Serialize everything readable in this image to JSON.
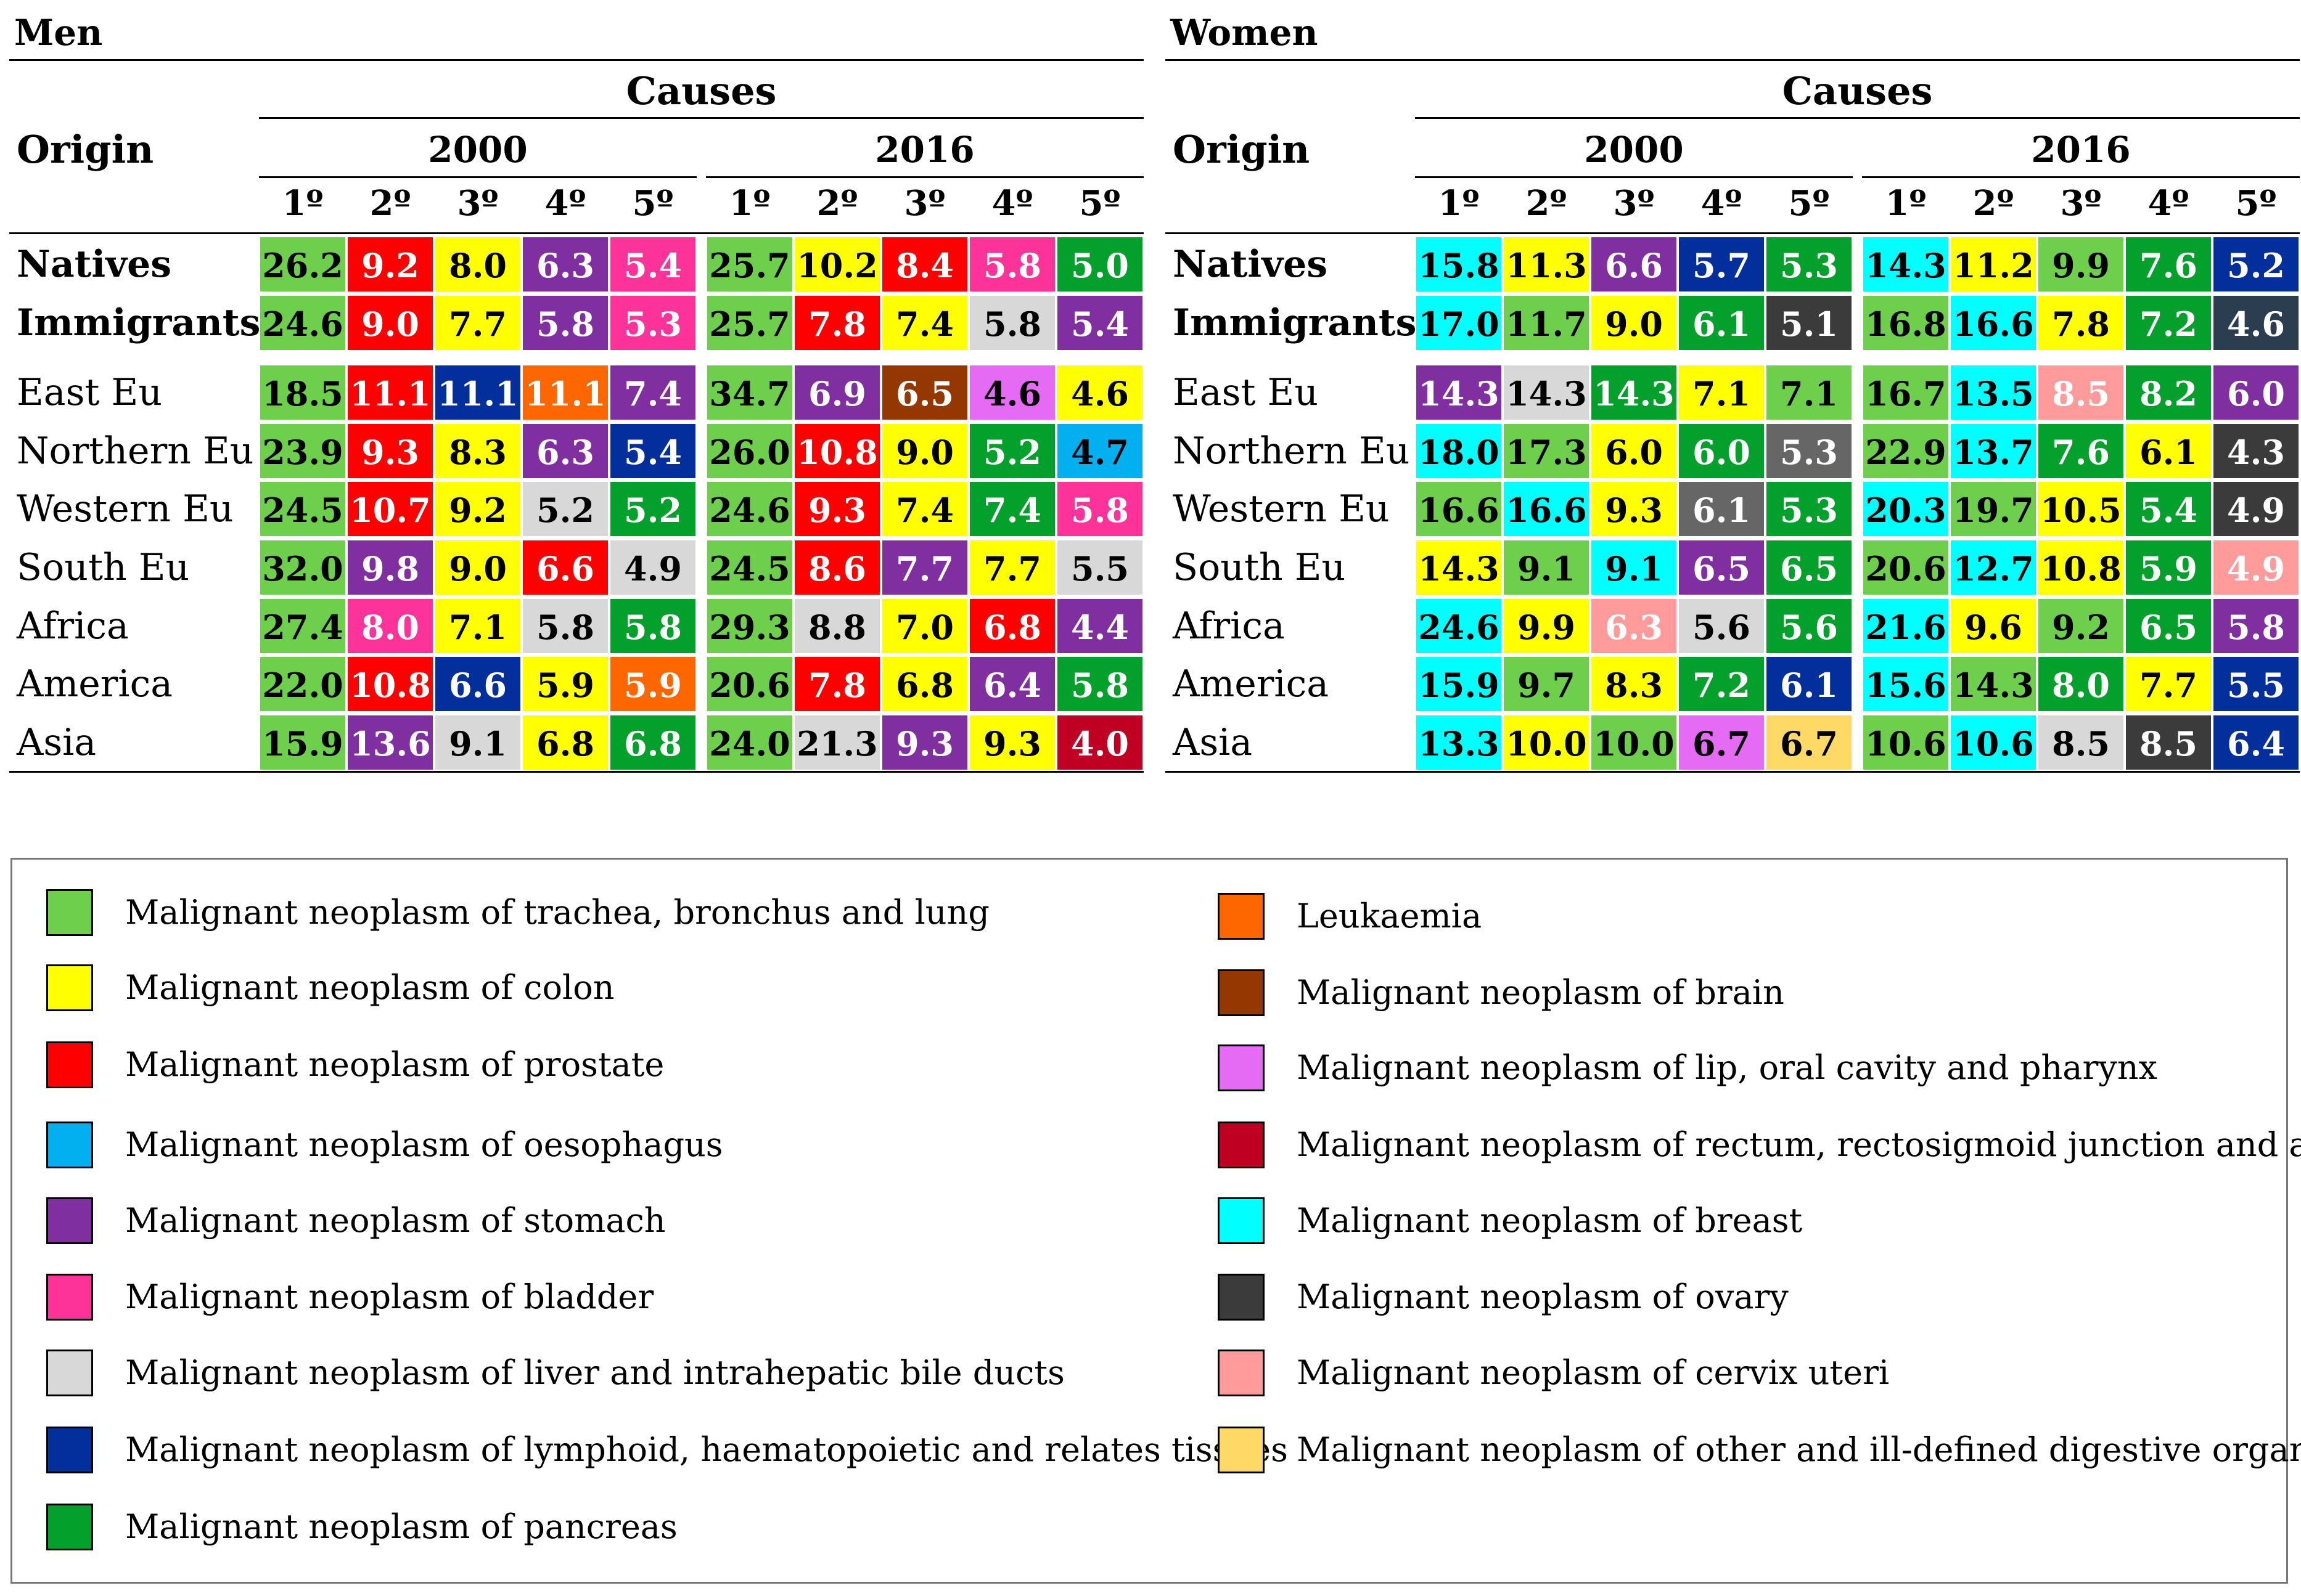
{
  "chart_data": [
    {
      "type": "table",
      "panel": "Men",
      "header_causes": "Causes",
      "header_origin": "Origin",
      "years": [
        "2000",
        "2016"
      ],
      "ranks": [
        "1º",
        "2º",
        "3º",
        "4º",
        "5º"
      ],
      "rows": [
        {
          "origin": "Natives",
          "bold": true,
          "values": [
            "26.2",
            "9.2",
            "8.0",
            "6.3",
            "5.4",
            "25.7",
            "10.2",
            "8.4",
            "5.8",
            "5.0"
          ],
          "causes": [
            "lung",
            "prostate",
            "colon",
            "stomach",
            "bladder",
            "lung",
            "colon",
            "prostate",
            "bladder",
            "pancreas"
          ]
        },
        {
          "origin": "Immigrants",
          "bold": true,
          "values": [
            "24.6",
            "9.0",
            "7.7",
            "5.8",
            "5.3",
            "25.7",
            "7.8",
            "7.4",
            "5.8",
            "5.4"
          ],
          "causes": [
            "lung",
            "prostate",
            "colon",
            "stomach",
            "bladder",
            "lung",
            "prostate",
            "colon",
            "liver",
            "stomach"
          ]
        },
        {
          "origin": "East Eu",
          "bold": false,
          "values": [
            "18.5",
            "11.1",
            "11.1",
            "11.1",
            "7.4",
            "34.7",
            "6.9",
            "6.5",
            "4.6",
            "4.6"
          ],
          "causes": [
            "lung",
            "prostate",
            "lymphoid",
            "leukaemia",
            "stomach",
            "lung",
            "stomach",
            "brain",
            "lip",
            "colon"
          ]
        },
        {
          "origin": "Northern Eu",
          "bold": false,
          "values": [
            "23.9",
            "9.3",
            "8.3",
            "6.3",
            "5.4",
            "26.0",
            "10.8",
            "9.0",
            "5.2",
            "4.7"
          ],
          "causes": [
            "lung",
            "prostate",
            "colon",
            "stomach",
            "lymphoid",
            "lung",
            "prostate",
            "colon",
            "pancreas",
            "oesophagus"
          ]
        },
        {
          "origin": "Western Eu",
          "bold": false,
          "values": [
            "24.5",
            "10.7",
            "9.2",
            "5.2",
            "5.2",
            "24.6",
            "9.3",
            "7.4",
            "7.4",
            "5.8"
          ],
          "causes": [
            "lung",
            "prostate",
            "colon",
            "liver",
            "pancreas",
            "lung",
            "prostate",
            "colon",
            "pancreas",
            "bladder"
          ]
        },
        {
          "origin": "South Eu",
          "bold": false,
          "values": [
            "32.0",
            "9.8",
            "9.0",
            "6.6",
            "4.9",
            "24.5",
            "8.6",
            "7.7",
            "7.7",
            "5.5"
          ],
          "causes": [
            "lung",
            "stomach",
            "colon",
            "prostate",
            "liver",
            "lung",
            "prostate",
            "stomach",
            "colon",
            "liver"
          ]
        },
        {
          "origin": "Africa",
          "bold": false,
          "values": [
            "27.4",
            "8.0",
            "7.1",
            "5.8",
            "5.8",
            "29.3",
            "8.8",
            "7.0",
            "6.8",
            "4.4"
          ],
          "causes": [
            "lung",
            "bladder",
            "colon",
            "liver",
            "pancreas",
            "lung",
            "liver",
            "colon",
            "prostate",
            "stomach"
          ]
        },
        {
          "origin": "America",
          "bold": false,
          "values": [
            "22.0",
            "10.8",
            "6.6",
            "5.9",
            "5.9",
            "20.6",
            "7.8",
            "6.8",
            "6.4",
            "5.8"
          ],
          "causes": [
            "lung",
            "prostate",
            "lymphoid",
            "colon",
            "leukaemia",
            "lung",
            "prostate",
            "colon",
            "stomach",
            "pancreas"
          ]
        },
        {
          "origin": "Asia",
          "bold": false,
          "values": [
            "15.9",
            "13.6",
            "9.1",
            "6.8",
            "6.8",
            "24.0",
            "21.3",
            "9.3",
            "9.3",
            "4.0"
          ],
          "causes": [
            "lung",
            "stomach",
            "liver",
            "colon",
            "pancreas",
            "lung",
            "liver",
            "stomach",
            "colon",
            "rectum"
          ]
        }
      ]
    },
    {
      "type": "table",
      "panel": "Women",
      "header_causes": "Causes",
      "header_origin": "Origin",
      "years": [
        "2000",
        "2016"
      ],
      "ranks": [
        "1º",
        "2º",
        "3º",
        "4º",
        "5º"
      ],
      "rows": [
        {
          "origin": "Natives",
          "bold": true,
          "values": [
            "15.8",
            "11.3",
            "6.6",
            "5.7",
            "5.3",
            "14.3",
            "11.2",
            "9.9",
            "7.6",
            "5.2"
          ],
          "causes": [
            "breast",
            "colon",
            "stomach",
            "lymphoid",
            "pancreas",
            "breast",
            "colon",
            "lung",
            "pancreas",
            "lymphoid"
          ]
        },
        {
          "origin": "Immigrants",
          "bold": true,
          "values": [
            "17.0",
            "11.7",
            "9.0",
            "6.1",
            "5.1",
            "16.8",
            "16.6",
            "7.8",
            "7.2",
            "4.6"
          ],
          "causes": [
            "breast",
            "lung",
            "colon",
            "pancreas",
            "ovary",
            "lung",
            "breast",
            "colon",
            "pancreas",
            "slate"
          ]
        },
        {
          "origin": "East Eu",
          "bold": false,
          "values": [
            "14.3",
            "14.3",
            "14.3",
            "7.1",
            "7.1",
            "16.7",
            "13.5",
            "8.5",
            "8.2",
            "6.0"
          ],
          "causes": [
            "stomach",
            "liver",
            "pancreas",
            "colon",
            "lung",
            "lung",
            "breast",
            "cervix",
            "pancreas",
            "stomach"
          ]
        },
        {
          "origin": "Northern Eu",
          "bold": false,
          "values": [
            "18.0",
            "17.3",
            "6.0",
            "6.0",
            "5.3",
            "22.9",
            "13.7",
            "7.6",
            "6.1",
            "4.3"
          ],
          "causes": [
            "breast",
            "lung",
            "colon",
            "pancreas",
            "grey",
            "lung",
            "breast",
            "pancreas",
            "colon",
            "ovary"
          ]
        },
        {
          "origin": "Western Eu",
          "bold": false,
          "values": [
            "16.6",
            "16.6",
            "9.3",
            "6.1",
            "5.3",
            "20.3",
            "19.7",
            "10.5",
            "5.4",
            "4.9"
          ],
          "causes": [
            "lung",
            "breast",
            "colon",
            "grey",
            "pancreas",
            "breast",
            "lung",
            "colon",
            "pancreas",
            "ovary"
          ]
        },
        {
          "origin": "South Eu",
          "bold": false,
          "values": [
            "14.3",
            "9.1",
            "9.1",
            "6.5",
            "6.5",
            "20.6",
            "12.7",
            "10.8",
            "5.9",
            "4.9"
          ],
          "causes": [
            "colon",
            "lung",
            "breast",
            "stomach",
            "pancreas",
            "lung",
            "breast",
            "colon",
            "pancreas",
            "cervix"
          ]
        },
        {
          "origin": "Africa",
          "bold": false,
          "values": [
            "24.6",
            "9.9",
            "6.3",
            "5.6",
            "5.6",
            "21.6",
            "9.6",
            "9.2",
            "6.5",
            "5.8"
          ],
          "causes": [
            "breast",
            "colon",
            "cervix",
            "liver",
            "pancreas",
            "breast",
            "colon",
            "lung",
            "pancreas",
            "stomach"
          ]
        },
        {
          "origin": "America",
          "bold": false,
          "values": [
            "15.9",
            "9.7",
            "8.3",
            "7.2",
            "6.1",
            "15.6",
            "14.3",
            "8.0",
            "7.7",
            "5.5"
          ],
          "causes": [
            "breast",
            "lung",
            "colon",
            "pancreas",
            "lymphoid",
            "breast",
            "lung",
            "pancreas",
            "colon",
            "lymphoid"
          ]
        },
        {
          "origin": "Asia",
          "bold": false,
          "values": [
            "13.3",
            "10.0",
            "10.0",
            "6.7",
            "6.7",
            "10.6",
            "10.6",
            "8.5",
            "8.5",
            "6.4"
          ],
          "causes": [
            "breast",
            "colon",
            "lung",
            "lip",
            "other_digestive",
            "lung",
            "breast",
            "liver",
            "ovary",
            "lymphoid"
          ]
        }
      ]
    }
  ],
  "colors": {
    "lung": "#6dcf4c",
    "colon": "#ffff00",
    "prostate": "#fe0000",
    "oesophagus": "#02b0f0",
    "stomach": "#7f2fa0",
    "bladder": "#fe3399",
    "liver": "#d8d8d8",
    "lymphoid": "#032f9c",
    "pancreas": "#03a02b",
    "leukaemia": "#fe6600",
    "brain": "#953700",
    "lip": "#e56bf5",
    "rectum": "#c00022",
    "breast": "#00ffff",
    "ovary": "#3b3b3b",
    "cervix": "#ff9b9b",
    "other_digestive": "#ffd966",
    "grey": "#666666",
    "slate": "#2b3e50"
  },
  "light_text_causes": [
    "prostate",
    "stomach",
    "bladder",
    "lymphoid",
    "pancreas",
    "leukaemia",
    "brain",
    "rectum",
    "ovary",
    "grey",
    "slate",
    "cervix"
  ],
  "legend": {
    "left": [
      {
        "cause": "lung",
        "label": "Malignant  neoplasm of trachea, bronchus and lung"
      },
      {
        "cause": "colon",
        "label": "Malignant  neoplasm of colon"
      },
      {
        "cause": "prostate",
        "label": "Malignant  neoplasm of prostate"
      },
      {
        "cause": "oesophagus",
        "label": "Malignant  neoplasm of oesophagus"
      },
      {
        "cause": "stomach",
        "label": "Malignant  neoplasm of stomach"
      },
      {
        "cause": "bladder",
        "label": "Malignant  neoplasm of bladder"
      },
      {
        "cause": "liver",
        "label": "Malignant  neoplasm of liver and intrahepatic bile ducts"
      },
      {
        "cause": "lymphoid",
        "label": "Malignant  neoplasm of lymphoid, haematopoietic and relates tissues"
      },
      {
        "cause": "pancreas",
        "label": "Malignant  neoplasm of pancreas"
      }
    ],
    "right": [
      {
        "cause": "leukaemia",
        "label": "Leukaemia"
      },
      {
        "cause": "brain",
        "label": "Malignant  neoplasm of brain"
      },
      {
        "cause": "lip",
        "label": "Malignant  neoplasm of lip, oral cavity and pharynx"
      },
      {
        "cause": "rectum",
        "label": "Malignant  neoplasm of rectum, rectosigmoid junction and anus"
      },
      {
        "cause": "breast",
        "label": "Malignant  neoplasm of breast"
      },
      {
        "cause": "ovary",
        "label": "Malignant  neoplasm of ovary"
      },
      {
        "cause": "cervix",
        "label": "Malignant  neoplasm of cervix uteri"
      },
      {
        "cause": "other_digestive",
        "label": "Malignant  neoplasm of other and ill-defined digestive organs"
      }
    ]
  }
}
